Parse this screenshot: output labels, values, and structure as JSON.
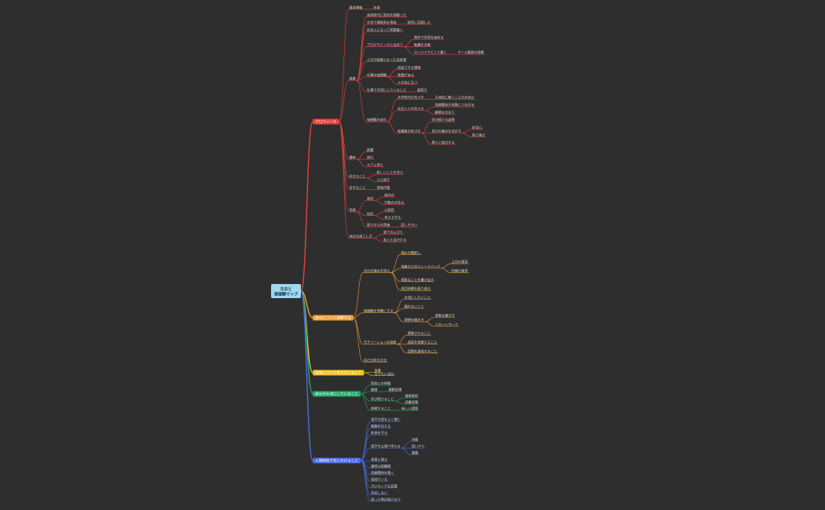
{
  "root": {
    "lines": [
      "なおと",
      "価値観マップ"
    ]
  },
  "branches": [
    {
      "label": "プロフィール",
      "color": "#e8453c",
      "children": [
        {
          "label": "基本情報",
          "children": [
            {
              "label": "名前"
            }
          ]
        },
        {
          "label": "経歴",
          "children": [
            {
              "label": "高校時代に部活を頑張った"
            },
            {
              "label": "大学で情報系を専攻",
              "children": [
                {
                  "label": "研究に没頭した"
                }
              ]
            },
            {
              "label": "社会人になって営業職へ"
            },
            {
              "label": "プログラミングに出会う",
              "children": [
                {
                  "label": "独学で学習を始める"
                },
                {
                  "label": "転職を決意"
                },
                {
                  "label": "エンジニアとして働く",
                  "children": [
                    {
                      "label": "チーム開発を経験"
                    }
                  ]
                }
              ]
            },
            {
              "label": "人生の転機となった出来事"
            },
            {
              "label": "仕事の価値観",
              "children": [
                {
                  "label": "成長できる環境"
                },
                {
                  "label": "裁量がある"
                },
                {
                  "label": "人の役に立つ"
                }
              ]
            },
            {
              "label": "仕事で大切にしていること",
              "children": [
                {
                  "label": "誠実さ"
                }
              ]
            },
            {
              "label": "価値観の変化",
              "children": [
                {
                  "label": "大学時代の気づき",
                  "children": [
                    {
                      "label": "主体的に動くことの大切さ"
                    }
                  ]
                },
                {
                  "label": "社会人での気づき",
                  "children": [
                    {
                      "label": "信頼関係が成果につながる"
                    },
                    {
                      "label": "継続は力なり"
                    }
                  ]
                },
                {
                  "label": "転職後の気づき",
                  "children": [
                    {
                      "label": "学び続ける姿勢"
                    },
                    {
                      "label": "自分の強みを活かす",
                      "children": [
                        {
                          "label": "好奇心"
                        },
                        {
                          "label": "粘り強さ"
                        }
                      ]
                    },
                    {
                      "label": "周りと協力する"
                    }
                  ]
                }
              ]
            }
          ]
        },
        {
          "label": "趣味",
          "children": [
            {
              "label": "読書"
            },
            {
              "label": "旅行"
            },
            {
              "label": "カフェ巡り"
            }
          ]
        },
        {
          "label": "好きなこと",
          "children": [
            {
              "label": "新しいことを学ぶ"
            },
            {
              "label": "人と話す"
            }
          ]
        },
        {
          "label": "苦手なこと",
          "children": [
            {
              "label": "単純作業"
            }
          ]
        },
        {
          "label": "性格",
          "children": [
            {
              "label": "長所",
              "children": [
                {
                  "label": "前向き"
                },
                {
                  "label": "行動力がある"
                }
              ]
            },
            {
              "label": "短所",
              "children": [
                {
                  "label": "心配性"
                },
                {
                  "label": "考えすぎる"
                }
              ]
            },
            {
              "label": "周りからの評価",
              "children": [
                {
                  "label": "話しやすい"
                }
              ]
            }
          ]
        },
        {
          "label": "休日の過ごし方",
          "children": [
            {
              "label": "家でのんびり"
            },
            {
              "label": "友人と出かける"
            }
          ]
        }
      ]
    },
    {
      "label": "自分について理解する",
      "color": "#f0a030",
      "children": [
        {
          "label": "自分の強みを知る",
          "children": [
            {
              "label": "強みの棚卸し"
            },
            {
              "label": "他者からのフィードバック",
              "children": [
                {
                  "label": "上司の意見"
                },
                {
                  "label": "同僚の意見"
                }
              ]
            },
            {
              "label": "得意なことを書き出す"
            },
            {
              "label": "成功体験を振り返る"
            }
          ]
        },
        {
          "label": "価値観を明確にする",
          "children": [
            {
              "label": "大切にしたいこと"
            },
            {
              "label": "譲れないこと"
            },
            {
              "label": "理想の働き方",
              "children": [
                {
                  "label": "柔軟な働き方"
                },
                {
                  "label": "リモートワーク"
                }
              ]
            }
          ]
        },
        {
          "label": "モチベーションの源泉",
          "children": [
            {
              "label": "感謝されること"
            },
            {
              "label": "成長を実感すること"
            },
            {
              "label": "目標を達成すること"
            }
          ]
        },
        {
          "label": "自己分析の方法"
        }
      ]
    },
    {
      "label": "将来について考えていること",
      "color": "#f2c12e",
      "children": [
        {
          "label": "目標"
        },
        {
          "label": "なりたい自分"
        }
      ]
    },
    {
      "label": "自分が大切にしていること",
      "color": "#1fae6a",
      "children": [
        {
          "label": "家族との時間"
        },
        {
          "label": "健康",
          "children": [
            {
              "label": "運動習慣"
            }
          ]
        },
        {
          "label": "学び続けること",
          "children": [
            {
              "label": "資格取得"
            },
            {
              "label": "読書習慣"
            }
          ]
        },
        {
          "label": "挑戦すること",
          "children": [
            {
              "label": "新しい環境"
            }
          ]
        }
      ]
    },
    {
      "label": "人間関係で気にかけること",
      "color": "#4a6ee0",
      "children": [
        {
          "label": "相手の話をよく聞く"
        },
        {
          "label": "感謝を伝える"
        },
        {
          "label": "約束を守る"
        },
        {
          "label": "相手の立場で考える",
          "children": [
            {
              "label": "共感"
            },
            {
              "label": "思いやり"
            },
            {
              "label": "尊重"
            }
          ]
        },
        {
          "label": "素直に謝る"
        },
        {
          "label": "適度な距離感"
        },
        {
          "label": "信頼関係を築く"
        },
        {
          "label": "笑顔でいる"
        },
        {
          "label": "ポジティブな言葉"
        },
        {
          "label": "否定しない"
        },
        {
          "label": "困った時は助け合う"
        }
      ]
    }
  ]
}
